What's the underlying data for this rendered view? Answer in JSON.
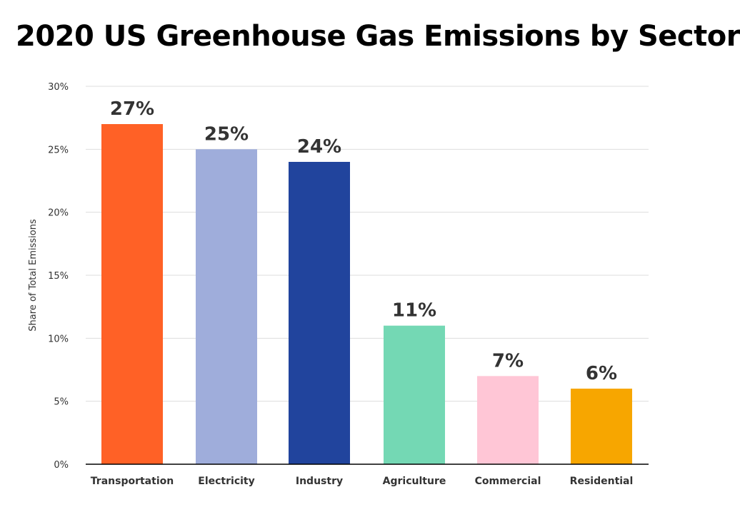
{
  "chart_data": {
    "type": "bar",
    "title": "2020 US Greenhouse Gas Emissions by Sector",
    "xlabel": "",
    "ylabel": "Share of Total Emissions",
    "categories": [
      "Transportation",
      "Electricity",
      "Industry",
      "Agriculture",
      "Commercial",
      "Residential"
    ],
    "values": [
      27,
      25,
      24,
      11,
      7,
      6
    ],
    "data_labels": [
      "27%",
      "25%",
      "24%",
      "11%",
      "7%",
      "6%"
    ],
    "colors": [
      "#FF6126",
      "#9FADDB",
      "#21449D",
      "#74D8B4",
      "#FFC6D6",
      "#F7A600"
    ],
    "ylim": [
      0,
      30
    ],
    "yticks": [
      0,
      5,
      10,
      15,
      20,
      25,
      30
    ],
    "ytick_labels": [
      "0%",
      "5%",
      "10%",
      "15%",
      "20%",
      "25%",
      "30%"
    ],
    "grid": true,
    "legend": "none"
  }
}
